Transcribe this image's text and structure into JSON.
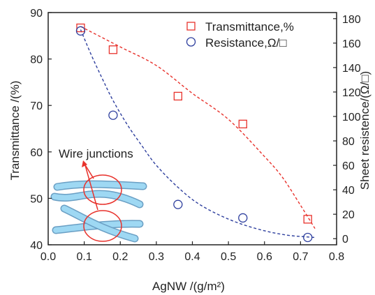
{
  "chart_data": {
    "type": "scatter",
    "xlabel": "AgNW /(g/m²)",
    "ylabel_left": "Transmittance /(%)",
    "ylabel_right": "Sheet resistence/(Ω/□)",
    "xlim": [
      0.0,
      0.8
    ],
    "ylim_left": [
      40,
      90
    ],
    "ylim_right": [
      -5,
      185
    ],
    "x_ticks": [
      "0.0",
      "0.1",
      "0.2",
      "0.3",
      "0.4",
      "0.5",
      "0.6",
      "0.7",
      "0.8"
    ],
    "y_left_ticks": [
      "40",
      "50",
      "60",
      "70",
      "80",
      "90"
    ],
    "y_right_ticks": [
      "0",
      "20",
      "40",
      "60",
      "80",
      "100",
      "120",
      "140",
      "160",
      "180"
    ],
    "legend_position": "top-right",
    "series": [
      {
        "name": "Transmittance,%",
        "axis": "left",
        "marker": "square",
        "color": "#e8322c",
        "x": [
          0.09,
          0.18,
          0.36,
          0.54,
          0.72
        ],
        "y": [
          86.7,
          82.0,
          72.0,
          66.0,
          45.5
        ],
        "fit": {
          "x": [
            0.09,
            0.2,
            0.3,
            0.4,
            0.5,
            0.6,
            0.65,
            0.7,
            0.74
          ],
          "y": [
            87.0,
            82.6,
            78.6,
            72.6,
            67.0,
            59.0,
            54.5,
            48.5,
            43.5
          ]
        }
      },
      {
        "name": "Resistance,Ω/□",
        "axis": "right",
        "marker": "circle",
        "color": "#2e3f9e",
        "x": [
          0.09,
          0.18,
          0.36,
          0.54,
          0.72
        ],
        "y": [
          170,
          101,
          28,
          17,
          1
        ],
        "fit": {
          "x": [
            0.09,
            0.12,
            0.15,
            0.18,
            0.22,
            0.26,
            0.3,
            0.36,
            0.42,
            0.5,
            0.58,
            0.66,
            0.74
          ],
          "y": [
            171,
            150,
            131,
            113,
            93,
            76,
            60,
            42,
            28,
            16,
            8,
            3,
            1
          ]
        }
      }
    ],
    "annotation": "Wire junctions"
  }
}
